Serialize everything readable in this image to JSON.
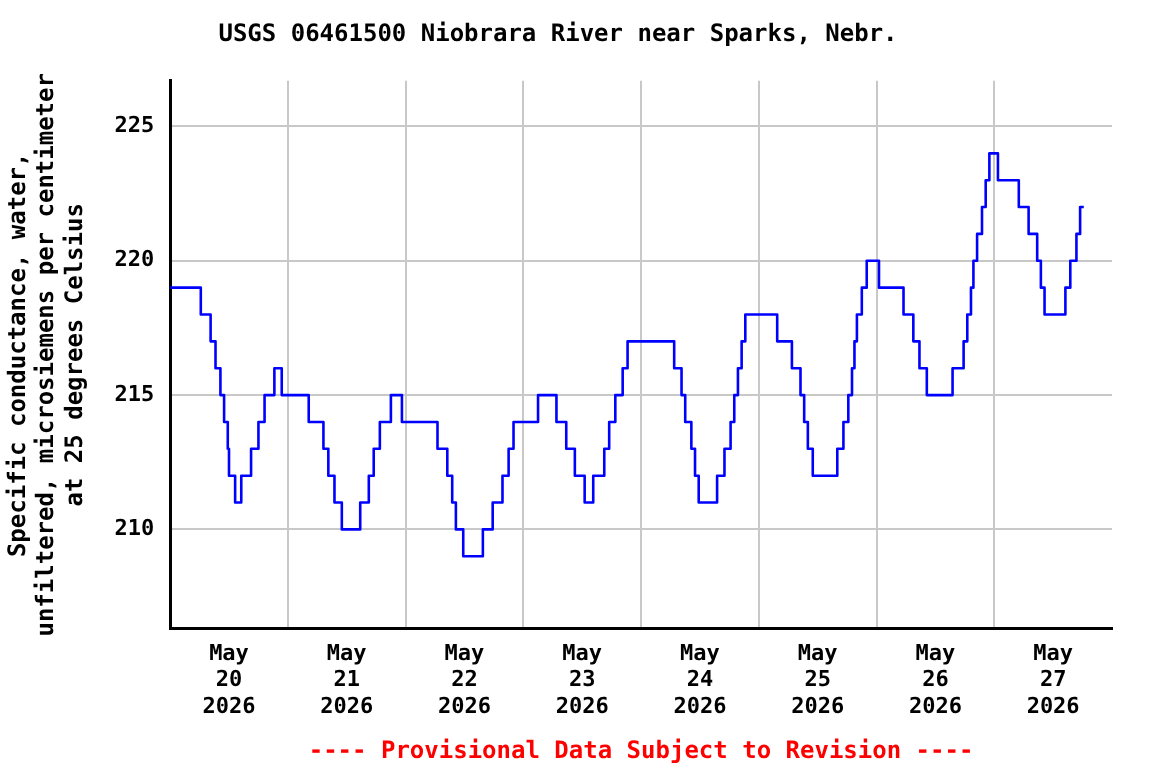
{
  "chart_data": {
    "type": "step",
    "title": "USGS 06461500 Niobrara River near Sparks, Nebr.",
    "ylabel": "Specific conductance, water,\nunfiltered, microsiemens per centimeter\nat 25 degrees Celsius",
    "annotations": [
      "---- Provisional Data Subject to Revision ----"
    ],
    "x": [
      "2026-05-20T00:00",
      "2026-05-20T06:15",
      "2026-05-20T08:15",
      "2026-05-20T09:15",
      "2026-05-20T10:15",
      "2026-05-20T11:00",
      "2026-05-20T11:45",
      "2026-05-20T12:00",
      "2026-05-20T13:15",
      "2026-05-20T14:30",
      "2026-05-20T16:30",
      "2026-05-20T18:00",
      "2026-05-20T19:15",
      "2026-05-20T21:15",
      "2026-05-20T22:45",
      "2026-05-21T04:15",
      "2026-05-21T07:15",
      "2026-05-21T08:15",
      "2026-05-21T09:30",
      "2026-05-21T11:00",
      "2026-05-21T14:45",
      "2026-05-21T16:30",
      "2026-05-21T17:30",
      "2026-05-21T18:45",
      "2026-05-21T21:00",
      "2026-05-21T23:15",
      "2026-05-22T06:30",
      "2026-05-22T08:30",
      "2026-05-22T09:30",
      "2026-05-22T10:15",
      "2026-05-22T11:45",
      "2026-05-22T15:45",
      "2026-05-22T17:45",
      "2026-05-22T19:45",
      "2026-05-22T21:00",
      "2026-05-22T22:00",
      "2026-05-23T03:00",
      "2026-05-23T06:45",
      "2026-05-23T08:45",
      "2026-05-23T10:30",
      "2026-05-23T12:30",
      "2026-05-23T14:15",
      "2026-05-23T16:30",
      "2026-05-23T17:30",
      "2026-05-23T18:45",
      "2026-05-23T20:15",
      "2026-05-23T21:15",
      "2026-05-24T06:45",
      "2026-05-24T08:15",
      "2026-05-24T09:00",
      "2026-05-24T10:15",
      "2026-05-24T11:00",
      "2026-05-24T11:45",
      "2026-05-24T15:30",
      "2026-05-24T17:00",
      "2026-05-24T18:15",
      "2026-05-24T19:00",
      "2026-05-24T19:45",
      "2026-05-24T20:30",
      "2026-05-24T21:15",
      "2026-05-25T03:45",
      "2026-05-25T06:45",
      "2026-05-25T08:30",
      "2026-05-25T09:15",
      "2026-05-25T10:00",
      "2026-05-25T11:00",
      "2026-05-25T16:00",
      "2026-05-25T17:15",
      "2026-05-25T18:15",
      "2026-05-25T19:00",
      "2026-05-25T19:30",
      "2026-05-25T20:00",
      "2026-05-25T21:00",
      "2026-05-25T22:00",
      "2026-05-26T00:30",
      "2026-05-26T05:30",
      "2026-05-26T07:30",
      "2026-05-26T08:45",
      "2026-05-26T10:15",
      "2026-05-26T15:30",
      "2026-05-26T17:45",
      "2026-05-26T18:30",
      "2026-05-26T19:15",
      "2026-05-26T19:45",
      "2026-05-26T20:30",
      "2026-05-26T21:30",
      "2026-05-26T22:15",
      "2026-05-26T23:00",
      "2026-05-27T00:45",
      "2026-05-27T05:00",
      "2026-05-27T07:00",
      "2026-05-27T08:45",
      "2026-05-27T09:30",
      "2026-05-27T10:15",
      "2026-05-27T14:30",
      "2026-05-27T15:30",
      "2026-05-27T16:45",
      "2026-05-27T17:30",
      "2026-05-27T18:15"
    ],
    "series": [
      {
        "color": "#0000ff",
        "values": [
          219,
          218,
          217,
          216,
          215,
          214,
          213,
          212,
          211,
          212,
          213,
          214,
          215,
          216,
          215,
          214,
          213,
          212,
          211,
          210,
          211,
          212,
          213,
          214,
          215,
          214,
          213,
          212,
          211,
          210,
          209,
          210,
          211,
          212,
          213,
          214,
          215,
          214,
          213,
          212,
          211,
          212,
          213,
          214,
          215,
          216,
          217,
          216,
          215,
          214,
          213,
          212,
          211,
          212,
          213,
          214,
          215,
          216,
          217,
          218,
          217,
          216,
          215,
          214,
          213,
          212,
          213,
          214,
          215,
          216,
          217,
          218,
          219,
          220,
          219,
          218,
          217,
          216,
          215,
          216,
          217,
          218,
          219,
          220,
          221,
          222,
          223,
          224,
          223,
          222,
          221,
          220,
          219,
          218,
          219,
          220,
          221,
          222,
          222
        ]
      }
    ],
    "xlim": [
      "2026-05-20",
      "2026-05-28"
    ],
    "xticks": [
      {
        "value": "2026-05-20T12:00",
        "label": "May\n20\n2026"
      },
      {
        "value": "2026-05-21",
        "label": null
      },
      {
        "value": "2026-05-21T12:00",
        "label": "May\n21\n2026"
      },
      {
        "value": "2026-05-22",
        "label": null
      },
      {
        "value": "2026-05-22T12:00",
        "label": "May\n22\n2026"
      },
      {
        "value": "2026-05-23",
        "label": null
      },
      {
        "value": "2026-05-23T12:00",
        "label": "May\n23\n2026"
      },
      {
        "value": "2026-05-24",
        "label": null
      },
      {
        "value": "2026-05-24T12:00",
        "label": "May\n24\n2026"
      },
      {
        "value": "2026-05-25",
        "label": null
      },
      {
        "value": "2026-05-25T12:00",
        "label": "May\n25\n2026"
      },
      {
        "value": "2026-05-26",
        "label": null
      },
      {
        "value": "2026-05-26T12:00",
        "label": "May\n26\n2026"
      },
      {
        "value": "2026-05-27",
        "label": null
      },
      {
        "value": "2026-05-27T12:00",
        "label": "May\n27\n2026"
      }
    ],
    "ylim": [
      206.3,
      226.7
    ],
    "yticks": [
      210,
      215,
      220,
      225
    ],
    "grid": true,
    "legend": false,
    "marker": "none",
    "line_style": "solid"
  }
}
